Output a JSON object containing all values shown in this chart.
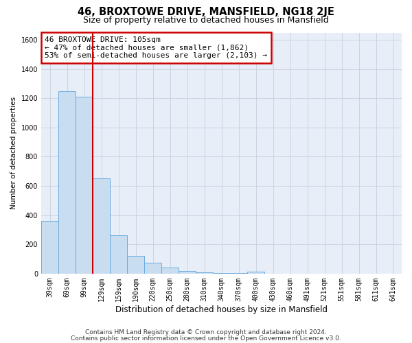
{
  "title": "46, BROXTOWE DRIVE, MANSFIELD, NG18 2JE",
  "subtitle": "Size of property relative to detached houses in Mansfield",
  "xlabel": "Distribution of detached houses by size in Mansfield",
  "ylabel": "Number of detached properties",
  "categories": [
    "39sqm",
    "69sqm",
    "99sqm",
    "129sqm",
    "159sqm",
    "190sqm",
    "220sqm",
    "250sqm",
    "280sqm",
    "310sqm",
    "340sqm",
    "370sqm",
    "400sqm",
    "430sqm",
    "460sqm",
    "491sqm",
    "521sqm",
    "551sqm",
    "581sqm",
    "611sqm",
    "641sqm"
  ],
  "values": [
    360,
    1250,
    1210,
    650,
    260,
    120,
    75,
    40,
    20,
    10,
    5,
    5,
    15,
    0,
    0,
    0,
    0,
    0,
    0,
    0,
    0
  ],
  "bar_color": "#c9ddf0",
  "bar_edge_color": "#6aabe0",
  "redline_x": 2.5,
  "annotation_line1": "46 BROXTOWE DRIVE: 105sqm",
  "annotation_line2": "← 47% of detached houses are smaller (1,862)",
  "annotation_line3": "53% of semi-detached houses are larger (2,103) →",
  "annotation_box_facecolor": "#ffffff",
  "annotation_box_edgecolor": "#cc0000",
  "ylim": [
    0,
    1650
  ],
  "yticks": [
    0,
    200,
    400,
    600,
    800,
    1000,
    1200,
    1400,
    1600
  ],
  "axes_facecolor": "#e8eef8",
  "grid_color": "#c8d0de",
  "footer_line1": "Contains HM Land Registry data © Crown copyright and database right 2024.",
  "footer_line2": "Contains public sector information licensed under the Open Government Licence v3.0.",
  "title_fontsize": 10.5,
  "subtitle_fontsize": 9,
  "xlabel_fontsize": 8.5,
  "ylabel_fontsize": 7.5,
  "tick_fontsize": 7,
  "annotation_fontsize": 8,
  "footer_fontsize": 6.5
}
